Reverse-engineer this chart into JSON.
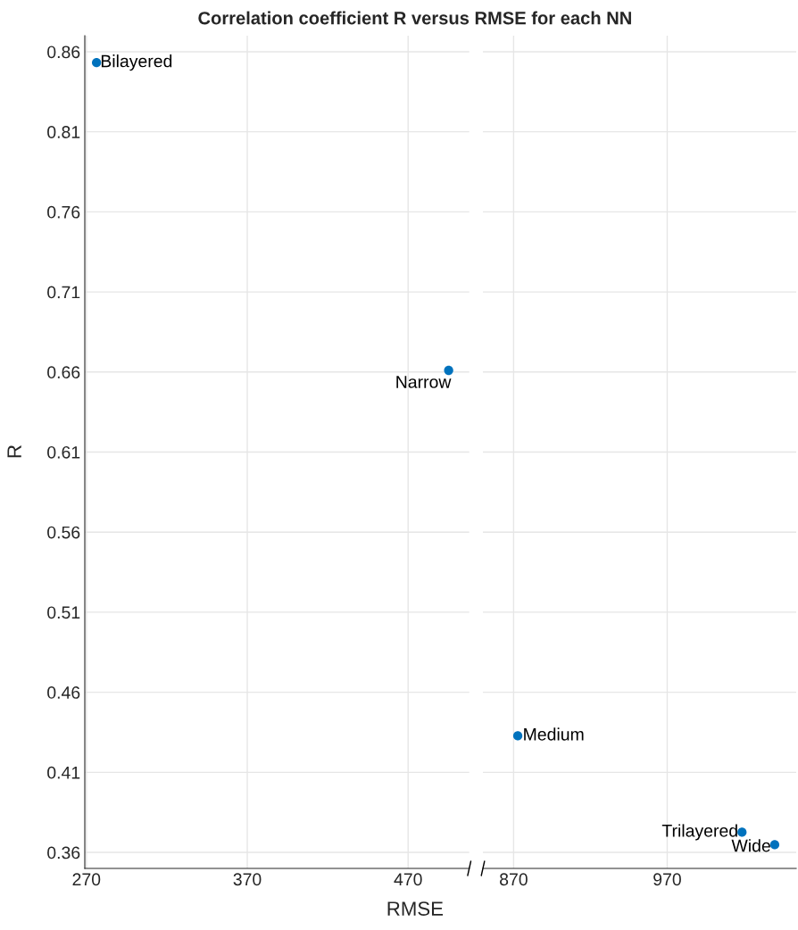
{
  "chart_data": [
    {
      "type": "scatter",
      "title": "Correlation coefficient R versus RMSE for each NN",
      "xlabel": "RMSE",
      "ylabel": "R",
      "x": [
        276.3,
        495.2
      ],
      "values": [
        0.8532,
        0.661
      ],
      "color": "#0072bd",
      "marker": "circle",
      "grid": true,
      "xlim": [
        269,
        508
      ],
      "xticks": [
        270,
        370,
        470
      ],
      "ylim": [
        0.35,
        0.87
      ],
      "yticks": [
        0.36,
        0.41,
        0.46,
        0.51,
        0.56,
        0.61,
        0.66,
        0.71,
        0.76,
        0.81,
        0.86
      ],
      "annotations": [
        {
          "text": "Bilayered",
          "x": 276.3,
          "y": 0.8532
        },
        {
          "text": "Narrow",
          "x": 495.2,
          "y": 0.661
        }
      ]
    },
    {
      "type": "scatter",
      "x": [
        872.7,
        1018.7,
        1040
      ],
      "values": [
        0.4328,
        0.3726,
        0.3648
      ],
      "color": "#0072bd",
      "marker": "circle",
      "grid": true,
      "xlim": [
        850,
        1054
      ],
      "xticks": [
        870,
        970
      ],
      "ylim": [
        0.35,
        0.87
      ],
      "yticks": [
        0.36,
        0.41,
        0.46,
        0.51,
        0.56,
        0.61,
        0.66,
        0.71,
        0.76,
        0.81,
        0.86
      ],
      "tick_labels": "x",
      "annotations": [
        {
          "text": "Medium",
          "x": 872.7,
          "y": 0.4328
        },
        {
          "text": "Trilayered",
          "x": 1018.7,
          "y": 0.3726
        },
        {
          "text": "Wide",
          "x": 1040,
          "y": 0.3648
        }
      ]
    }
  ]
}
